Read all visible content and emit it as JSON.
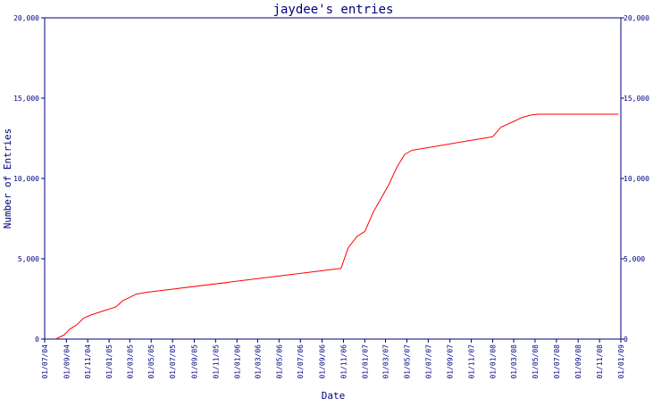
{
  "chart_data": {
    "type": "line",
    "title": "jaydee's entries",
    "xlabel": "Date",
    "ylabel": "Number of Entries",
    "ylim": [
      0,
      20000
    ],
    "yticks": [
      0,
      5000,
      10000,
      15000,
      20000
    ],
    "ytick_labels": [
      "0",
      "5,000",
      "10,000",
      "15,000",
      "20,000"
    ],
    "y_axis_right": true,
    "grid": false,
    "legend": "none",
    "xlim": [
      "2004-07-01",
      "2009-01-01"
    ],
    "x_ticks": [
      "2004-07-01",
      "2004-09-01",
      "2004-11-01",
      "2005-01-01",
      "2005-03-01",
      "2005-05-01",
      "2005-07-01",
      "2005-09-01",
      "2005-11-01",
      "2006-01-01",
      "2006-03-01",
      "2006-05-01",
      "2006-07-01",
      "2006-09-01",
      "2006-11-01",
      "2007-01-01",
      "2007-03-01",
      "2007-05-01",
      "2007-07-01",
      "2007-09-01",
      "2007-11-01",
      "2008-01-01",
      "2008-03-01",
      "2008-05-01",
      "2008-07-01",
      "2008-09-01",
      "2008-11-01",
      "2009-01-01"
    ],
    "x_tick_labels": [
      "01/07/04",
      "01/09/04",
      "01/11/04",
      "01/01/05",
      "01/03/05",
      "01/05/05",
      "01/07/05",
      "01/09/05",
      "01/11/05",
      "01/01/06",
      "01/03/06",
      "01/05/06",
      "01/07/06",
      "01/09/06",
      "01/11/06",
      "01/01/07",
      "01/03/07",
      "01/05/07",
      "01/07/07",
      "01/09/07",
      "01/11/07",
      "01/01/08",
      "01/03/08",
      "01/05/08",
      "01/07/08",
      "01/09/08",
      "01/11/08",
      "01/01/09"
    ],
    "series": [
      {
        "color": "#ff0000",
        "x": [
          "2004-08-01",
          "2004-08-25",
          "2004-09-10",
          "2004-10-01",
          "2004-10-20",
          "2004-11-10",
          "2004-12-15",
          "2005-01-20",
          "2005-02-10",
          "2005-03-01",
          "2005-03-20",
          "2005-04-15",
          "2006-10-25",
          "2006-11-15",
          "2006-12-10",
          "2007-01-01",
          "2007-01-25",
          "2007-02-15",
          "2007-03-10",
          "2007-04-05",
          "2007-04-25",
          "2007-05-15",
          "2008-01-01",
          "2008-01-25",
          "2008-02-25",
          "2008-03-25",
          "2008-04-20",
          "2008-05-10",
          "2008-12-25"
        ],
        "y": [
          0,
          250,
          600,
          900,
          1300,
          1500,
          1750,
          2000,
          2400,
          2600,
          2800,
          2900,
          4400,
          5700,
          6400,
          6700,
          7900,
          8700,
          9600,
          10800,
          11500,
          11750,
          12600,
          13200,
          13500,
          13800,
          13950,
          14000,
          14000
        ]
      }
    ]
  }
}
